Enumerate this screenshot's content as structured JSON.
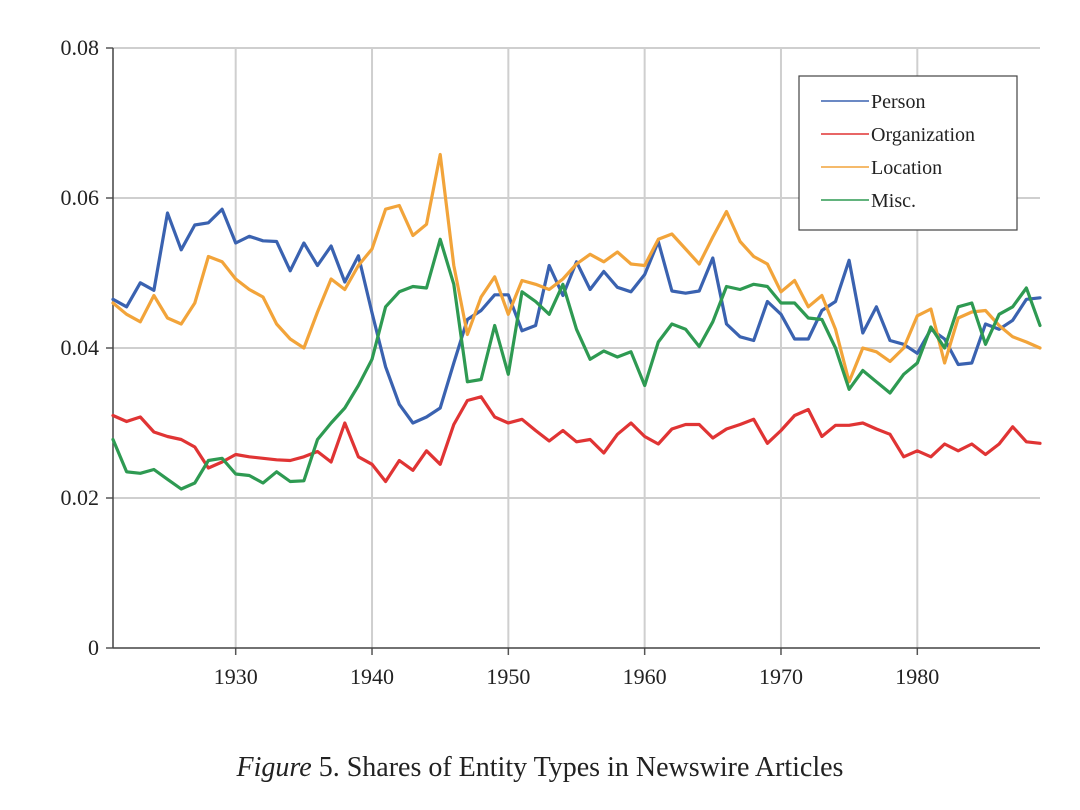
{
  "chart_data": {
    "type": "line",
    "title": "",
    "xlabel": "",
    "ylabel": "",
    "xlim": [
      1921,
      1989
    ],
    "ylim": [
      0,
      0.08
    ],
    "grid": true,
    "legend_position": "top-right",
    "x_ticks": [
      1930,
      1940,
      1950,
      1960,
      1970,
      1980
    ],
    "x_tick_labels": [
      "1930",
      "1940",
      "1950",
      "1960",
      "1970",
      "1980"
    ],
    "y_ticks": [
      0,
      0.02,
      0.04,
      0.06,
      0.08
    ],
    "y_tick_labels": [
      "0",
      "0.02",
      "0.04",
      "0.06",
      "0.08"
    ],
    "x": [
      1921,
      1922,
      1923,
      1924,
      1925,
      1926,
      1927,
      1928,
      1929,
      1930,
      1931,
      1932,
      1933,
      1934,
      1935,
      1936,
      1937,
      1938,
      1939,
      1940,
      1941,
      1942,
      1943,
      1944,
      1945,
      1946,
      1947,
      1948,
      1949,
      1950,
      1951,
      1952,
      1953,
      1954,
      1955,
      1956,
      1957,
      1958,
      1959,
      1960,
      1961,
      1962,
      1963,
      1964,
      1965,
      1966,
      1967,
      1968,
      1969,
      1970,
      1971,
      1972,
      1973,
      1974,
      1975,
      1976,
      1977,
      1978,
      1979,
      1980,
      1981,
      1982,
      1983,
      1984,
      1985,
      1986,
      1987,
      1988,
      1989
    ],
    "series": [
      {
        "name": "Person",
        "color": "#3a62b0",
        "values": [
          0.0465,
          0.0455,
          0.0487,
          0.0477,
          0.058,
          0.0531,
          0.0564,
          0.0567,
          0.0585,
          0.054,
          0.0549,
          0.0543,
          0.0542,
          0.0503,
          0.054,
          0.051,
          0.0536,
          0.0488,
          0.0523,
          0.0447,
          0.0375,
          0.0325,
          0.03,
          0.0308,
          0.032,
          0.038,
          0.0438,
          0.045,
          0.0471,
          0.0471,
          0.0423,
          0.043,
          0.051,
          0.047,
          0.0515,
          0.0478,
          0.0502,
          0.0481,
          0.0475,
          0.0498,
          0.0542,
          0.0476,
          0.0473,
          0.0476,
          0.052,
          0.0432,
          0.0415,
          0.041,
          0.0462,
          0.0445,
          0.0412,
          0.0412,
          0.045,
          0.0462,
          0.0517,
          0.042,
          0.0455,
          0.041,
          0.0405,
          0.0393,
          0.0425,
          0.0412,
          0.0378,
          0.038,
          0.0432,
          0.0425,
          0.0437,
          0.0465,
          0.0467
        ]
      },
      {
        "name": "Organization",
        "color": "#e03434",
        "values": [
          0.031,
          0.0302,
          0.0308,
          0.0288,
          0.0282,
          0.0278,
          0.0268,
          0.024,
          0.0248,
          0.0258,
          0.0255,
          0.0253,
          0.0251,
          0.025,
          0.0255,
          0.0262,
          0.0248,
          0.03,
          0.0255,
          0.0245,
          0.0222,
          0.025,
          0.0237,
          0.0263,
          0.0245,
          0.0298,
          0.033,
          0.0335,
          0.0308,
          0.03,
          0.0305,
          0.029,
          0.0276,
          0.029,
          0.0275,
          0.0278,
          0.026,
          0.0285,
          0.03,
          0.0282,
          0.0272,
          0.0292,
          0.0298,
          0.0298,
          0.028,
          0.0292,
          0.0298,
          0.0305,
          0.0273,
          0.029,
          0.031,
          0.0318,
          0.0282,
          0.0297,
          0.0297,
          0.03,
          0.0292,
          0.0285,
          0.0255,
          0.0263,
          0.0255,
          0.0272,
          0.0263,
          0.0272,
          0.0258,
          0.0272,
          0.0295,
          0.0275,
          0.0273
        ]
      },
      {
        "name": "Location",
        "color": "#f2a43a",
        "values": [
          0.046,
          0.0445,
          0.0435,
          0.047,
          0.044,
          0.0432,
          0.046,
          0.0522,
          0.0515,
          0.0492,
          0.0478,
          0.0468,
          0.0432,
          0.0412,
          0.04,
          0.0448,
          0.0492,
          0.0478,
          0.051,
          0.0532,
          0.0585,
          0.059,
          0.055,
          0.0565,
          0.0658,
          0.051,
          0.0418,
          0.0468,
          0.0495,
          0.0445,
          0.049,
          0.0485,
          0.0478,
          0.0492,
          0.0512,
          0.0525,
          0.0515,
          0.0528,
          0.0512,
          0.051,
          0.0545,
          0.0552,
          0.0532,
          0.0512,
          0.0548,
          0.0582,
          0.0542,
          0.0522,
          0.0512,
          0.0475,
          0.049,
          0.0455,
          0.047,
          0.0425,
          0.0355,
          0.04,
          0.0395,
          0.0382,
          0.04,
          0.0443,
          0.0452,
          0.038,
          0.044,
          0.0448,
          0.045,
          0.043,
          0.0415,
          0.0408,
          0.04
        ]
      },
      {
        "name": "Misc.",
        "color": "#2e9a52",
        "values": [
          0.0278,
          0.0235,
          0.0233,
          0.0238,
          0.0225,
          0.0212,
          0.022,
          0.025,
          0.0253,
          0.0232,
          0.023,
          0.022,
          0.0235,
          0.0222,
          0.0223,
          0.0278,
          0.03,
          0.032,
          0.035,
          0.0385,
          0.0455,
          0.0475,
          0.0482,
          0.048,
          0.0545,
          0.0485,
          0.0355,
          0.0358,
          0.043,
          0.0365,
          0.0475,
          0.0462,
          0.0445,
          0.0485,
          0.0425,
          0.0385,
          0.0396,
          0.0388,
          0.0395,
          0.035,
          0.0408,
          0.0432,
          0.0425,
          0.0402,
          0.0435,
          0.0482,
          0.0478,
          0.0485,
          0.0482,
          0.046,
          0.046,
          0.044,
          0.0438,
          0.04,
          0.0345,
          0.037,
          0.0355,
          0.034,
          0.0365,
          0.038,
          0.0428,
          0.04,
          0.0455,
          0.046,
          0.0405,
          0.0445,
          0.0455,
          0.048,
          0.043
        ]
      }
    ]
  },
  "caption": {
    "prefix": "Figure",
    "text": " 5. Shares of Entity Types in Newswire Articles"
  }
}
